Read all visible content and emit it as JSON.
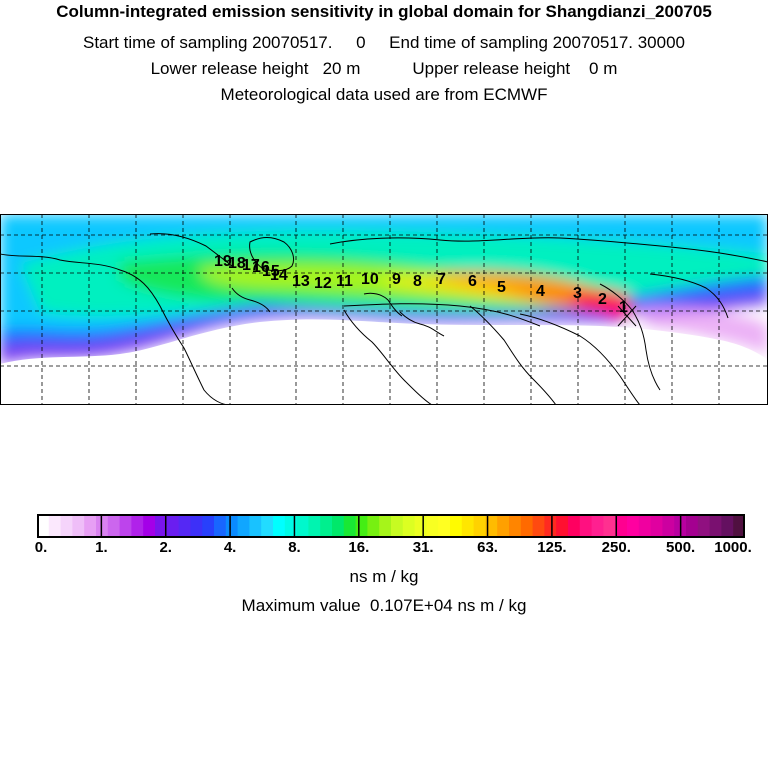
{
  "header": {
    "title": "Column-integrated emission sensitivity in global domain for Shangdianzi_200705",
    "line2": "Start time of sampling 20070517.     0     End time of sampling 20070517. 30000",
    "line3": "Lower release height   20 m           Upper release height    0 m",
    "line4": "Meteorological data used are from ECMWF"
  },
  "map": {
    "trajectory_labels": [
      "1",
      "2",
      "3",
      "4",
      "5",
      "6",
      "7",
      "8",
      "9",
      "10",
      "11",
      "12",
      "13",
      "14",
      "15",
      "16",
      "17",
      "18",
      "19"
    ],
    "release_marker": "X"
  },
  "colorbar": {
    "tick_labels": [
      "0.",
      "1.",
      "2.",
      "4.",
      "8.",
      "16.",
      "31.",
      "63.",
      "125.",
      "250.",
      "500.",
      "1000."
    ],
    "colors": [
      "#ffffff",
      "#fbe8fd",
      "#f5d4fb",
      "#efbef8",
      "#e79ff4",
      "#d982f0",
      "#cc66ee",
      "#bd44ec",
      "#b022ea",
      "#a400e8",
      "#7a14ec",
      "#6a1ef0",
      "#5528f4",
      "#3d30f8",
      "#2840fc",
      "#1866ff",
      "#0a8aff",
      "#10a6ff",
      "#19c2ff",
      "#22dcff",
      "#00ffff",
      "#00fbe6",
      "#00f8cc",
      "#00f4b0",
      "#00ef8e",
      "#00e86a",
      "#19e834",
      "#44ee14",
      "#77f011",
      "#a6f41a",
      "#c7fb22",
      "#dcff22",
      "#ecff22",
      "#f8ff22",
      "#ffff22",
      "#fffb00",
      "#ffe600",
      "#ffd200",
      "#ffbb00",
      "#ffa000",
      "#ff8500",
      "#ff6a00",
      "#ff4a10",
      "#ff2a20",
      "#ff1030",
      "#ff0060",
      "#ff1080",
      "#ff2090",
      "#ff3090",
      "#ff0090",
      "#ff00a0",
      "#f000a0",
      "#e000a0",
      "#cc00a0",
      "#b800a0",
      "#a40090",
      "#901080",
      "#7a1070",
      "#641060",
      "#501040"
    ],
    "unit": "ns m / kg",
    "maximum_label": "Maximum value  0.107E+04 ns m / kg"
  }
}
